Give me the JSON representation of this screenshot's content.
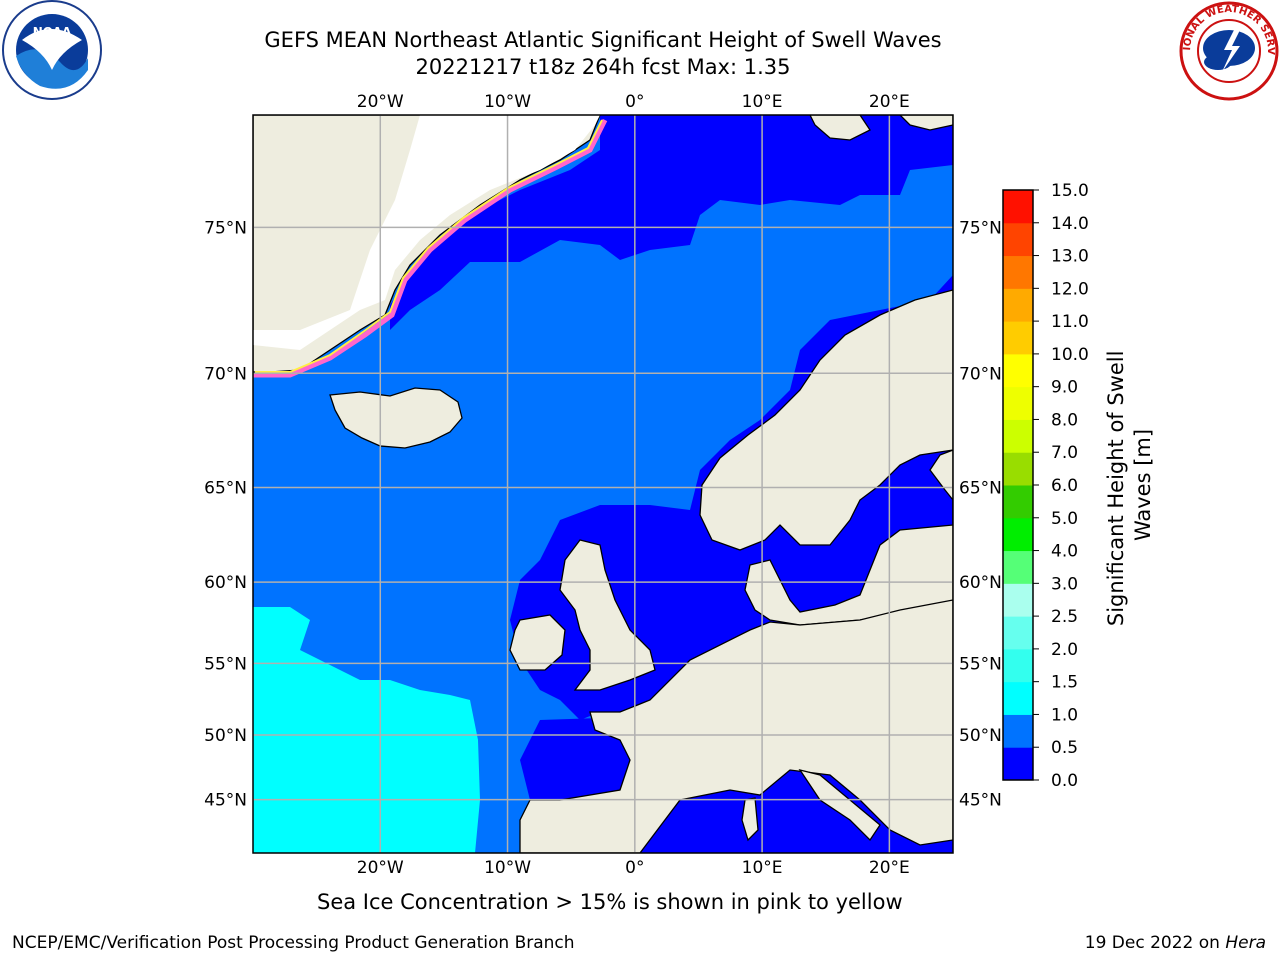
{
  "title": {
    "line1": "GEFS MEAN Northeast Atlantic Significant Height of Swell Waves",
    "line2": "20221217 t18z 264h fcst   Max: 1.35"
  },
  "logos": {
    "left": {
      "name": "noaa-logo",
      "text": "NOAA",
      "ring_text": "NATIONAL OCEANIC AND ATMOSPHERIC ADMINISTRATION · U.S. DEPARTMENT OF COMMERCE"
    },
    "right": {
      "name": "nws-logo",
      "ring_text": "NATIONAL WEATHER SERVICE"
    }
  },
  "map": {
    "projection": "Mercator",
    "lon_range": [
      -30,
      25
    ],
    "lat_range": [
      40.5,
      78
    ],
    "lon_ticks": [
      {
        "value": -20,
        "label": "20°W"
      },
      {
        "value": -10,
        "label": "10°W"
      },
      {
        "value": 0,
        "label": "0°"
      },
      {
        "value": 10,
        "label": "10°E"
      },
      {
        "value": 20,
        "label": "20°E"
      }
    ],
    "lat_ticks": [
      {
        "value": 75,
        "label": "75°N"
      },
      {
        "value": 70,
        "label": "70°N"
      },
      {
        "value": 65,
        "label": "65°N"
      },
      {
        "value": 60,
        "label": "60°N"
      },
      {
        "value": 55,
        "label": "55°N"
      },
      {
        "value": 50,
        "label": "50°N"
      },
      {
        "value": 45,
        "label": "45°N"
      }
    ],
    "land_color": "#eeeddf",
    "ice_free_no_data_color": "#ffffff",
    "grid_color": "#b0b0b0"
  },
  "colorbar": {
    "label": "Significant Height of Swell Waves [m]",
    "ticks": [
      "0.0",
      "0.5",
      "1.0",
      "1.5",
      "2.0",
      "2.5",
      "3.0",
      "4.0",
      "5.0",
      "6.0",
      "7.0",
      "8.0",
      "9.0",
      "10.0",
      "11.0",
      "12.0",
      "13.0",
      "14.0",
      "15.0"
    ],
    "colors": [
      "#0000ff",
      "#0073ff",
      "#00ffff",
      "#33ffee",
      "#66ffee",
      "#aaffee",
      "#55ff77",
      "#00ee00",
      "#33cc00",
      "#99dd00",
      "#ccff00",
      "#eeff00",
      "#ffff00",
      "#ffcc00",
      "#ffaa00",
      "#ff7700",
      "#ff4400",
      "#ff1100"
    ]
  },
  "ice_note": "Sea Ice Concentration > 15% is shown in pink to yellow",
  "footer": {
    "left": "NCEP/EMC/Verification Post Processing Product Generation Branch",
    "right_date": "19 Dec 2022 on ",
    "right_host": "Hera"
  }
}
